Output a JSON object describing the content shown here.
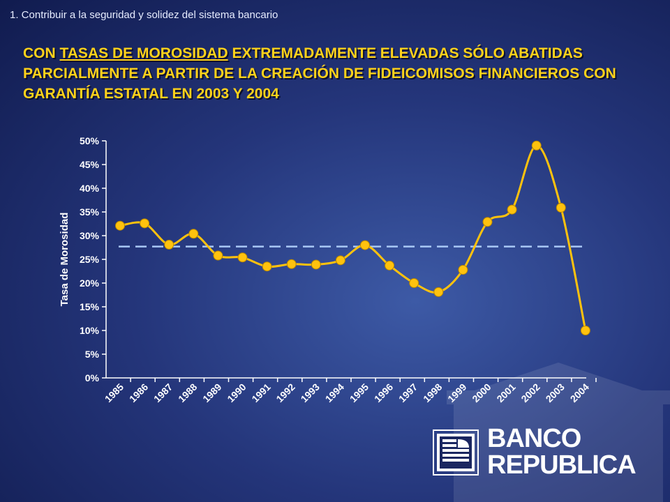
{
  "header": {
    "section_label": "1.  Contribuir a la seguridad y solidez del sistema  bancario",
    "title_part1": "CON ",
    "title_underlined": "TASAS DE MOROSIDAD",
    "title_part2": " EXTREMADAMENTE ELEVADAS SÓLO ABATIDAS PARCIALMENTE A PARTIR DE LA CREACIÓN DE FIDEICOMISOS FINANCIEROS CON GARANTÍA ESTATAL EN 2003 Y 2004"
  },
  "logo": {
    "line1": "BANCO",
    "line2": "REPUBLICA"
  },
  "colors": {
    "line": "#ffc20e",
    "marker": "#ffc20e",
    "reference_line": "#a9c8f5",
    "axis_text": "#ffffff",
    "title": "#ffd21a"
  },
  "chart_data": {
    "type": "line",
    "categories": [
      "1985",
      "1986",
      "1987",
      "1988",
      "1989",
      "1990",
      "1991",
      "1992",
      "1993",
      "1994",
      "1995",
      "1996",
      "1997",
      "1998",
      "1999",
      "2000",
      "2001",
      "2002",
      "2003",
      "2004"
    ],
    "series": [
      {
        "values": [
          32.1,
          32.6,
          28.1,
          30.4,
          25.8,
          25.4,
          23.5,
          24.0,
          23.9,
          24.8,
          28.0,
          23.7,
          20.0,
          18.1,
          22.8,
          32.9,
          35.5,
          49.0,
          35.9,
          10.0
        ]
      }
    ],
    "reference_line": {
      "value": 27.7,
      "style": "dashed"
    },
    "ylabel": "Tasa de Morosidad",
    "xlabel": "",
    "ylim": [
      0,
      50
    ],
    "yticks": [
      0,
      5,
      10,
      15,
      20,
      25,
      30,
      35,
      40,
      45,
      50
    ],
    "ytick_format": "percent",
    "grid": false,
    "legend": "none",
    "line_smoothing": "curved"
  }
}
